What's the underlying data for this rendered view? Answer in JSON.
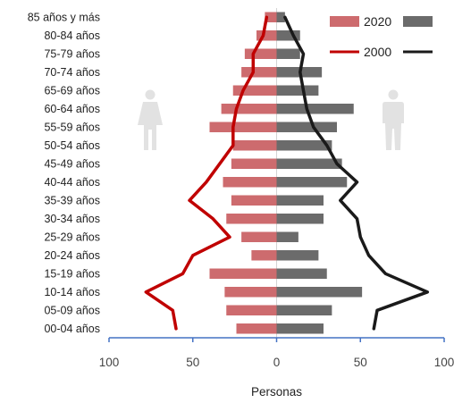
{
  "chart_data": {
    "type": "bar",
    "categories": [
      "85 años y más",
      "80-84 años",
      "75-79 años",
      "70-74 años",
      "65-69 años",
      "60-64 años",
      "55-59 años",
      "50-54 años",
      "45-49 años",
      "40-44 años",
      "35-39 años",
      "30-34 años",
      "25-29 años",
      "20-24 años",
      "15-19 años",
      "10-14 años",
      "05-09 años",
      "00-04 años"
    ],
    "xlabel": "Personas",
    "xlim": [
      -100,
      100
    ],
    "xticks": [
      -100,
      -50,
      0,
      50,
      100
    ],
    "xtick_labels": [
      "100",
      "50",
      "0",
      "50",
      "100"
    ],
    "legend": {
      "placement": "top-right",
      "labels": [
        "2020",
        "2000"
      ]
    },
    "series": [
      {
        "name": "2020",
        "group": "left",
        "kind": "bar",
        "color": "#cd6b6e",
        "values": [
          -7,
          -12,
          -19,
          -21,
          -26,
          -33,
          -40,
          -26,
          -27,
          -32,
          -27,
          -30,
          -21,
          -15,
          -40,
          -31,
          -30,
          -24
        ]
      },
      {
        "name": "2020",
        "group": "right",
        "kind": "bar",
        "color": "#6b6b6b",
        "values": [
          5,
          14,
          14,
          27,
          25,
          46,
          36,
          33,
          39,
          42,
          28,
          28,
          13,
          25,
          30,
          51,
          33,
          28
        ]
      },
      {
        "name": "2000",
        "group": "left",
        "kind": "line",
        "color": "#c00000",
        "values": [
          -6,
          -8,
          -14,
          -14,
          -20,
          -24,
          -26,
          -26,
          -34,
          -42,
          -52,
          -38,
          -28,
          -50,
          -56,
          -78,
          -62,
          -60
        ]
      },
      {
        "name": "2000",
        "group": "right",
        "kind": "line",
        "color": "#1a1a1a",
        "values": [
          5,
          10,
          16,
          14,
          16,
          18,
          22,
          30,
          36,
          48,
          38,
          48,
          50,
          55,
          65,
          90,
          60,
          58
        ]
      }
    ]
  }
}
